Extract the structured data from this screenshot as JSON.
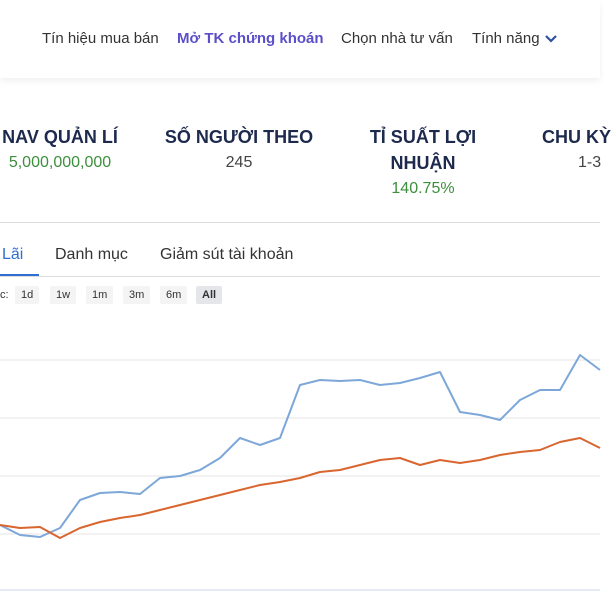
{
  "nav": {
    "items": [
      "Tín hiệu mua bán",
      "Mở TK chứng khoán",
      "Chọn nhà tư vấn",
      "Tính năng"
    ]
  },
  "stats": [
    {
      "label": "NAV QUẢN LÍ",
      "value": "5,000,000,000"
    },
    {
      "label": "SỐ NGƯỜI THEO",
      "value": "245"
    },
    {
      "label": [
        "TỈ SUẤT LỢI",
        "NHUẬN"
      ],
      "value": "140.75%"
    },
    {
      "label": "CHU KỲ",
      "value": "1-3"
    }
  ],
  "tabs": [
    "Lãi",
    "Danh mục",
    "Giảm sút tài khoản"
  ],
  "zoom": {
    "label": "c:",
    "buttons": [
      "1d",
      "1w",
      "1m",
      "3m",
      "6m",
      "All"
    ]
  },
  "chart_data": {
    "type": "line",
    "ylim": [
      0,
      290
    ],
    "series": [
      {
        "color": "#7ca7d8",
        "values": [
          65,
          55,
          53,
          62,
          90,
          97,
          98,
          96,
          112,
          114,
          120,
          132,
          152,
          145,
          152,
          205,
          210,
          209,
          210,
          205,
          207,
          212,
          218,
          178,
          175,
          170,
          190,
          200,
          200,
          235,
          220
        ]
      },
      {
        "color": "#d9652f",
        "values": [
          65,
          62,
          63,
          52,
          62,
          68,
          72,
          75,
          80,
          85,
          90,
          95,
          100,
          105,
          108,
          112,
          118,
          120,
          125,
          130,
          132,
          125,
          130,
          127,
          130,
          135,
          138,
          140,
          148,
          152,
          142
        ]
      }
    ]
  }
}
